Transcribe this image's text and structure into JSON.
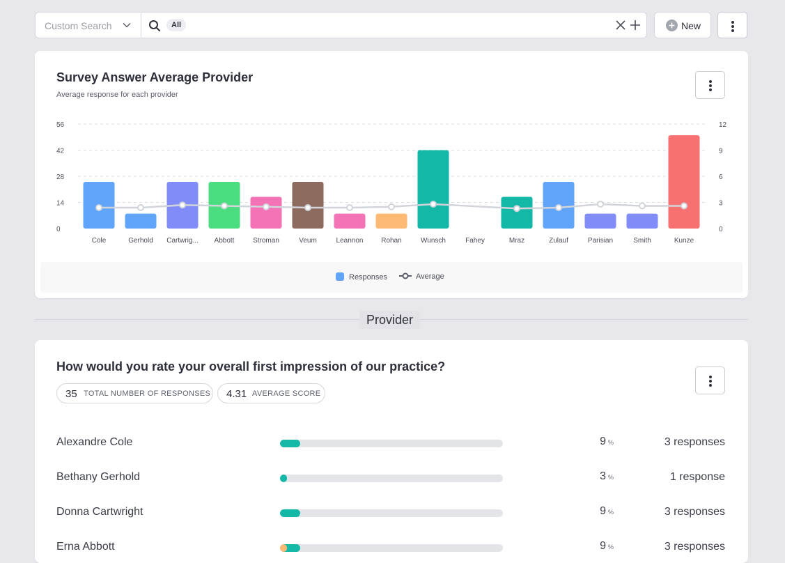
{
  "search": {
    "custom_search_placeholder": "Custom Search",
    "chip_label": "All",
    "new_button_label": "New"
  },
  "colors": {
    "teal": "#14b8a6",
    "orange": "#fdba74",
    "line": "#d1d5db",
    "track": "#e4e5e8"
  },
  "chart_card": {
    "title": "Survey Answer Average Provider",
    "subtitle": "Average response for each provider",
    "legend": {
      "responses": "Responses",
      "average": "Average"
    }
  },
  "chart_data": {
    "type": "bar",
    "title": "Survey Answer Average Provider",
    "subtitle": "Average response for each provider",
    "categories": [
      "Cole",
      "Gerhold",
      "Cartwrig...",
      "Abbott",
      "Stroman",
      "Veum",
      "Leannon",
      "Rohan",
      "Wunsch",
      "Fahey",
      "Mraz",
      "Zulauf",
      "Parisian",
      "Smith",
      "Kunze"
    ],
    "series": [
      {
        "name": "Responses",
        "axis": "left",
        "values": [
          25,
          8,
          25,
          25,
          17,
          25,
          8,
          8,
          42,
          0,
          17,
          25,
          8,
          8,
          50
        ],
        "colors": [
          "#60a5fa",
          "#60a5fa",
          "#818cf8",
          "#4ade80",
          "#f472b6",
          "#8d6b5e",
          "#f472b6",
          "#fdba74",
          "#14b8a6",
          "#14b8a6",
          "#14b8a6",
          "#60a5fa",
          "#818cf8",
          "#818cf8",
          "#f87171"
        ]
      },
      {
        "name": "Average",
        "axis": "right",
        "type": "line",
        "values": [
          2.4,
          2.4,
          2.7,
          2.6,
          2.5,
          2.4,
          2.4,
          2.5,
          2.8,
          null,
          2.3,
          2.4,
          2.8,
          2.6,
          2.6
        ]
      }
    ],
    "y_left": {
      "ticks": [
        "0",
        "14",
        "28",
        "42",
        "56"
      ],
      "lim": [
        0,
        56
      ]
    },
    "y_right": {
      "ticks": [
        "0",
        "3",
        "6",
        "9",
        "12"
      ],
      "lim": [
        0,
        12
      ]
    },
    "grid": true,
    "legend_position": "bottom"
  },
  "divider_label": "Provider",
  "question_card": {
    "title": "How would you rate your overall first impression of our practice?",
    "total_responses": "35",
    "total_label": "TOTAL NUMBER OF RESPONSES",
    "average_score": "4.31",
    "average_label": "AVERAGE SCORE",
    "pct_unit": "%",
    "rows": [
      {
        "name": "Alexandre Cole",
        "pct": "9",
        "responses": "3 responses",
        "fill": 0.09,
        "fill_color": "#14b8a6"
      },
      {
        "name": "Bethany Gerhold",
        "pct": "3",
        "responses": "1 response",
        "fill": 0.03,
        "fill_color": "#14b8a6"
      },
      {
        "name": "Donna Cartwright",
        "pct": "9",
        "responses": "3 responses",
        "fill": 0.09,
        "fill_color": "#14b8a6"
      },
      {
        "name": "Erna Abbott",
        "pct": "9",
        "responses": "3 responses",
        "fill": 0.09,
        "fill_color": "#14b8a6",
        "fill_prefix": 0.03,
        "prefix_color": "#fdba74"
      }
    ]
  }
}
